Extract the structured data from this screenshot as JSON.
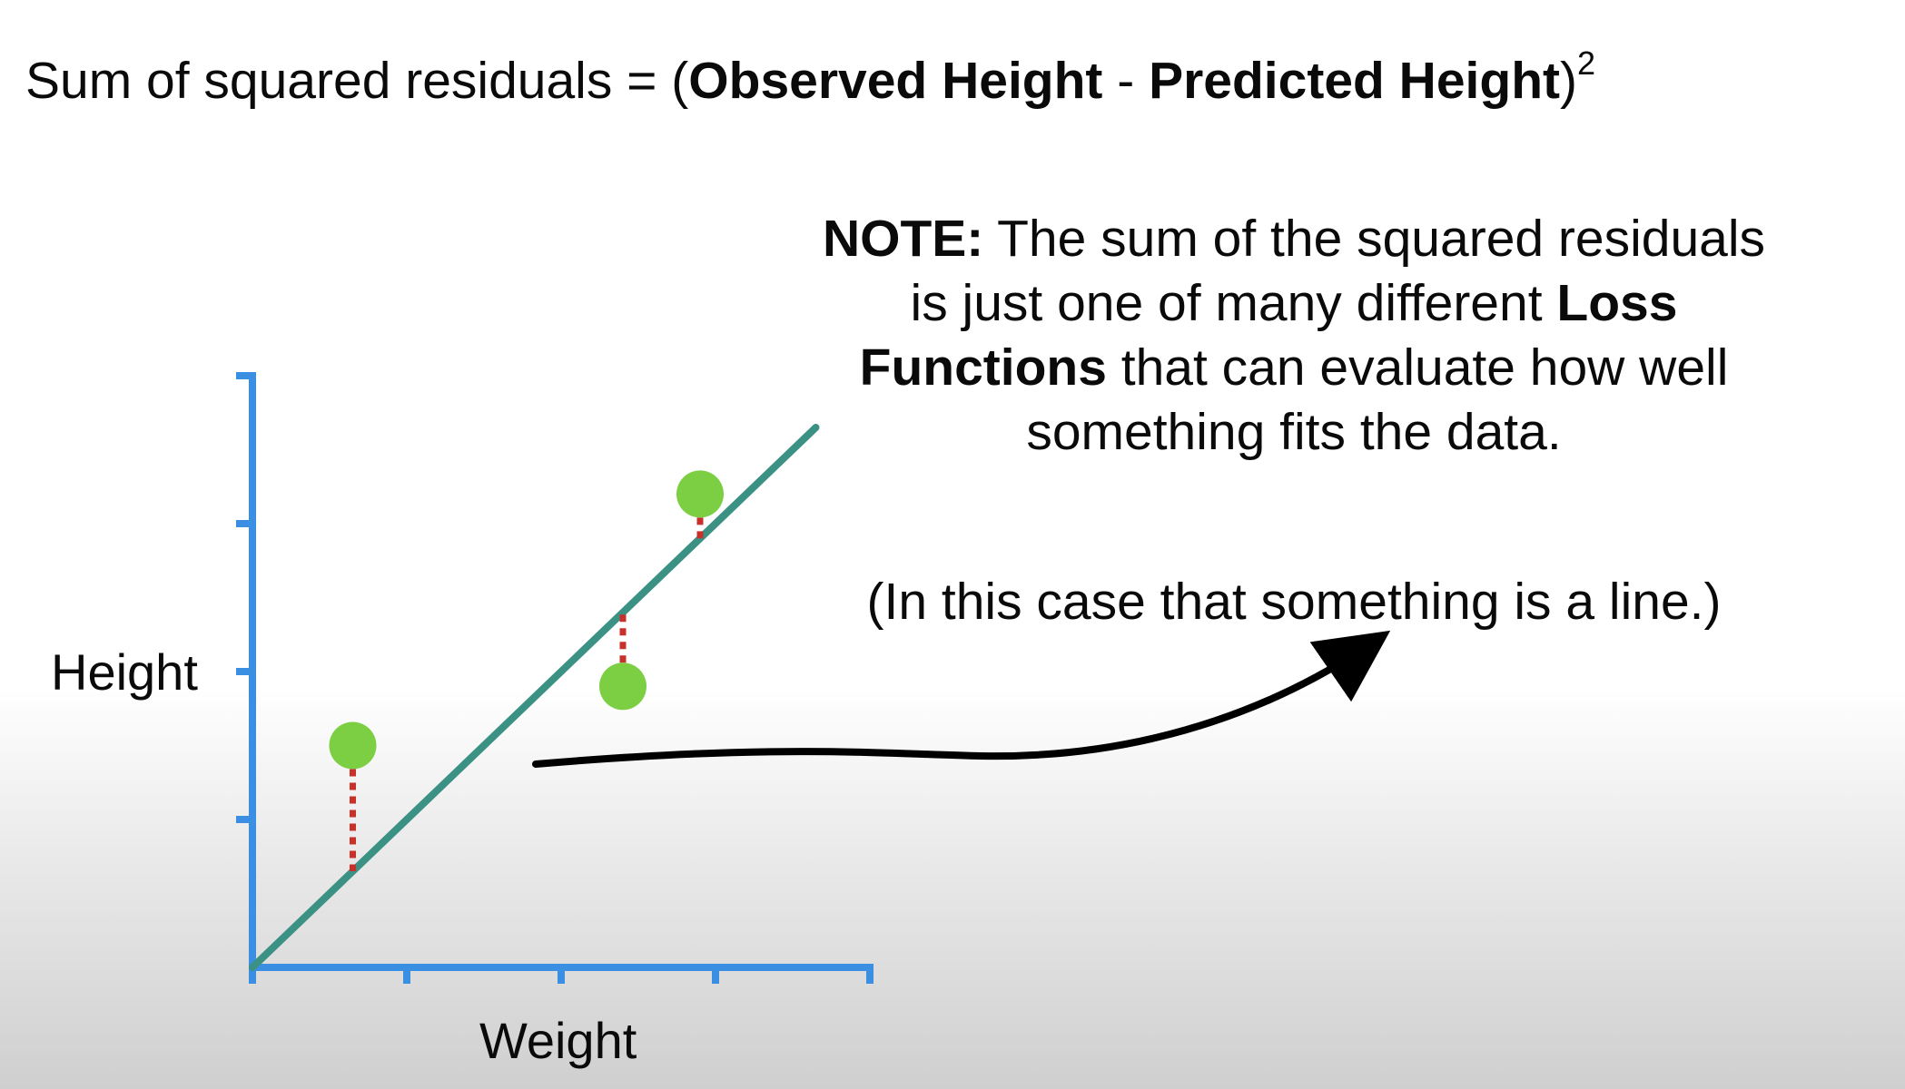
{
  "title": {
    "prefix": "Sum of squared residuals = (",
    "observed": "Observed Height",
    "minus": " - ",
    "predicted": "Predicted Height",
    "close": ")",
    "exponent": "2"
  },
  "note": {
    "label": "NOTE:",
    "text1": " The sum of the squared residuals is just one of many different ",
    "bold": "Loss Functions",
    "text2": " that can evaluate how well something fits the data.",
    "case": "(In this case that something is a line.)"
  },
  "axes": {
    "y_label": "Height",
    "x_label": "Weight"
  },
  "colors": {
    "axis": "#3b8fe3",
    "fit_line": "#3a9184",
    "points": "#7ccf43",
    "residuals": "#c8302a",
    "arrow": "#000000"
  },
  "chart_data": {
    "type": "scatter",
    "xlabel": "Weight",
    "ylabel": "Height",
    "xlim": [
      0,
      4
    ],
    "ylim": [
      0,
      4
    ],
    "points": [
      {
        "x": 0.65,
        "y": 1.5
      },
      {
        "x": 2.4,
        "y": 1.9
      },
      {
        "x": 2.9,
        "y": 3.2
      }
    ],
    "fit_line": {
      "slope": 1.0,
      "intercept": 0.0
    },
    "residuals": true,
    "grid": false
  }
}
